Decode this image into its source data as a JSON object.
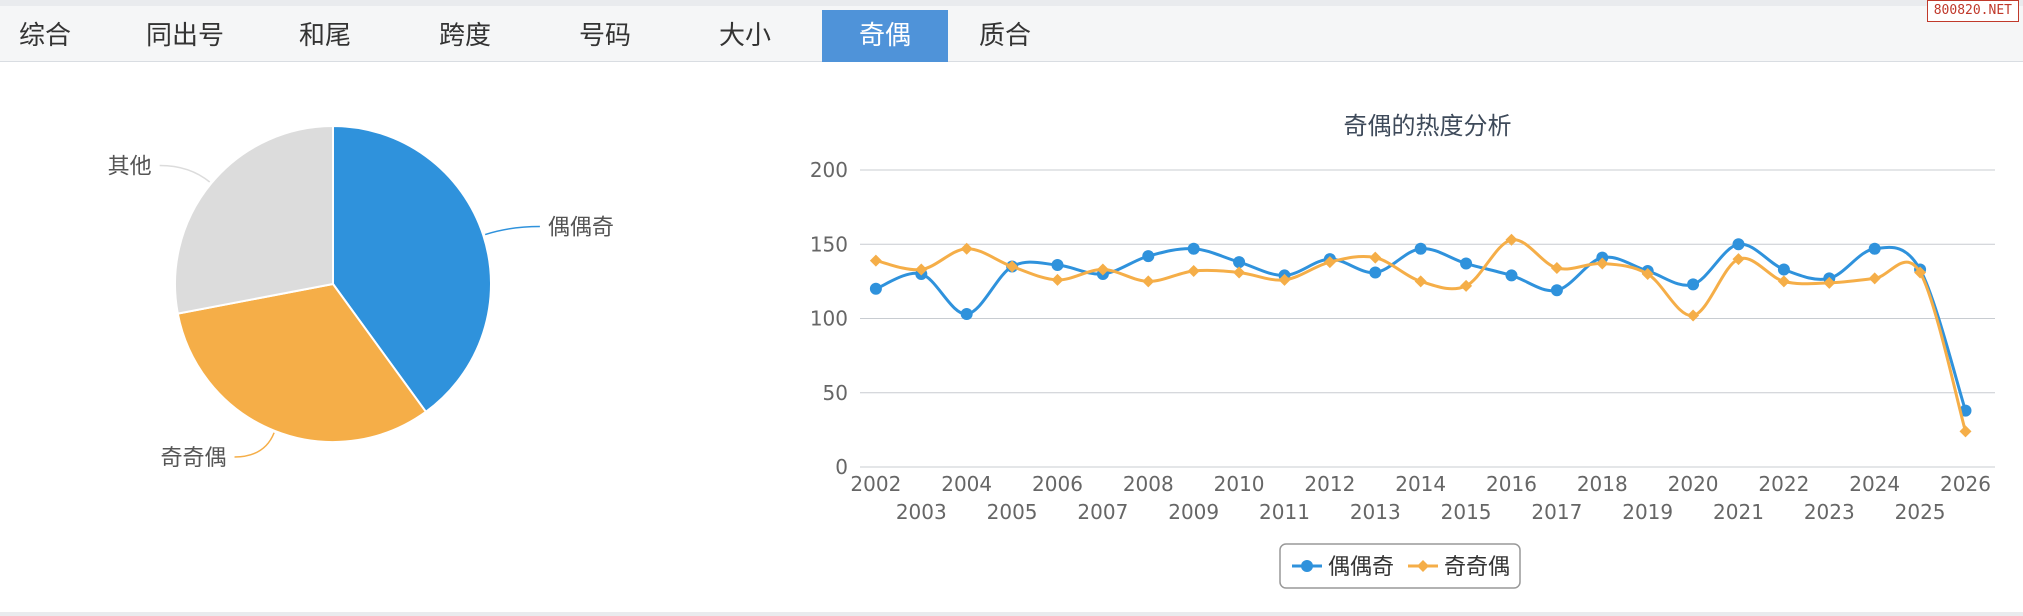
{
  "tabs": [
    {
      "label": "综合",
      "active": false
    },
    {
      "label": "同出号",
      "active": false
    },
    {
      "label": "和尾",
      "active": false
    },
    {
      "label": "跨度",
      "active": false
    },
    {
      "label": "号码",
      "active": false
    },
    {
      "label": "大小",
      "active": false
    },
    {
      "label": "奇偶",
      "active": true
    },
    {
      "label": "质合",
      "active": false
    }
  ],
  "watermark": "800820.NET",
  "colors": {
    "series_a": "#2f92dc",
    "series_b": "#f5ae48",
    "other": "#dcdcdc",
    "active_tab": "#4f93d9"
  },
  "chart_data": [
    {
      "type": "pie",
      "slices": [
        {
          "name": "偶偶奇",
          "value": 40
        },
        {
          "name": "奇奇偶",
          "value": 32
        },
        {
          "name": "其他",
          "value": 28
        }
      ]
    },
    {
      "type": "line",
      "title": "奇偶的热度分析",
      "x": [
        "2002",
        "2003",
        "2004",
        "2005",
        "2006",
        "2007",
        "2008",
        "2009",
        "2010",
        "2011",
        "2012",
        "2013",
        "2014",
        "2015",
        "2016",
        "2017",
        "2018",
        "2019",
        "2020",
        "2021",
        "2022",
        "2023",
        "2024",
        "2025",
        "2026"
      ],
      "series": [
        {
          "name": "偶偶奇",
          "values": [
            120,
            130,
            103,
            135,
            136,
            130,
            142,
            147,
            138,
            129,
            140,
            131,
            147,
            137,
            129,
            119,
            141,
            132,
            123,
            150,
            133,
            127,
            147,
            133,
            38
          ]
        },
        {
          "name": "奇奇偶",
          "values": [
            139,
            133,
            147,
            135,
            126,
            133,
            125,
            132,
            131,
            126,
            138,
            141,
            125,
            122,
            153,
            134,
            137,
            130,
            102,
            140,
            125,
            124,
            127,
            131,
            24
          ]
        }
      ],
      "ylim": [
        0,
        200
      ],
      "yticks": [
        0,
        50,
        100,
        150,
        200
      ],
      "grid": true,
      "legend": "bottom-center"
    }
  ]
}
